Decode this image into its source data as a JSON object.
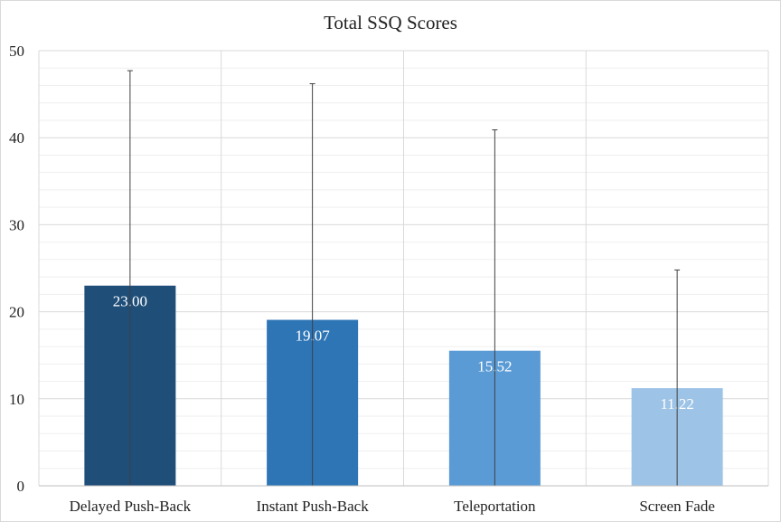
{
  "chart_data": {
    "type": "bar",
    "title": "Total SSQ Scores",
    "xlabel": "",
    "ylabel": "",
    "categories": [
      "Delayed Push-Back",
      "Instant Push-Back",
      "Teleportation",
      "Screen Fade"
    ],
    "values": [
      23.0,
      19.07,
      15.52,
      11.22
    ],
    "value_labels": [
      "23.00",
      "19.07",
      "15.52",
      "11.22"
    ],
    "error_upper": [
      47.7,
      46.2,
      40.9,
      24.8
    ],
    "ylim": [
      0,
      50
    ],
    "yticks": [
      0,
      10,
      20,
      30,
      40,
      50
    ],
    "ytick_labels": [
      "0",
      "10",
      "20",
      "30",
      "40",
      "50"
    ],
    "grid": "major and minor horizontal, vertical category separators",
    "legend": "none",
    "colors": [
      "#1f4e79",
      "#2e75b6",
      "#5b9bd5",
      "#9dc3e6"
    ]
  }
}
